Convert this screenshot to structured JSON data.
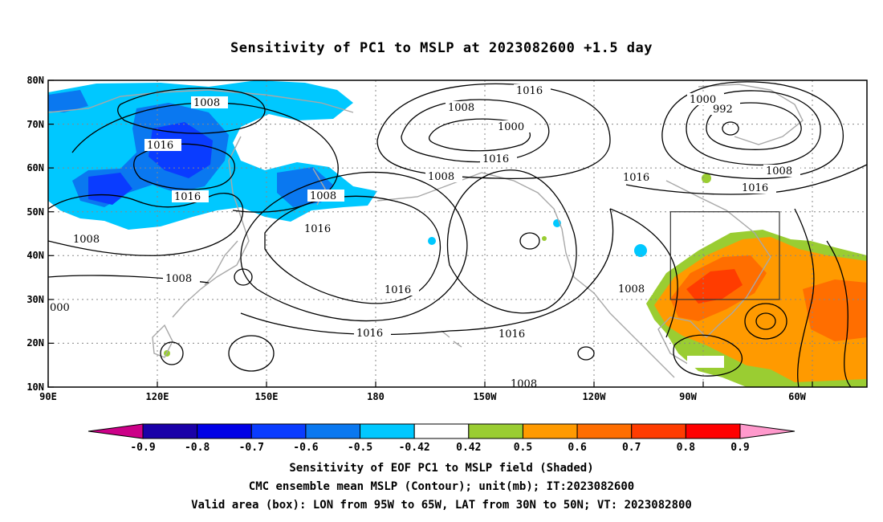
{
  "title": "Sensitivity of PC1 to MSLP at 2023082600 +1.5 day",
  "lat_labels": [
    "80N",
    "70N",
    "60N",
    "50N",
    "40N",
    "30N",
    "20N",
    "10N"
  ],
  "lon_labels": [
    "90E",
    "120E",
    "150E",
    "180",
    "150W",
    "120W",
    "90W",
    "60W"
  ],
  "contour_labels": [
    "1008",
    "1016",
    "1016",
    "1008",
    "1008",
    "1008",
    "000",
    "1008",
    "1000",
    "1016",
    "1008",
    "1016",
    "1016",
    "1016",
    "1016",
    "1016",
    "1008",
    "1000",
    "992",
    "1008",
    "1016",
    "1016",
    "1008"
  ],
  "colorbar": {
    "labels": [
      "-0.9",
      "-0.8",
      "-0.7",
      "-0.6",
      "-0.5",
      "-0.42",
      "0.42",
      "0.5",
      "0.6",
      "0.7",
      "0.8",
      "0.9"
    ],
    "colors": [
      "#1a00a8",
      "#0000e6",
      "#0a3cff",
      "#0a78f0",
      "#00c8ff",
      "#ffffff",
      "#9acd32",
      "#ff9a00",
      "#ff6e00",
      "#ff3c00",
      "#ff0000"
    ],
    "low_arrow_color": "#cc0088",
    "high_arrow_color": "#ff99cc"
  },
  "captions": [
    "Sensitivity of EOF PC1 to MSLP field (Shaded)",
    "CMC ensemble mean MSLP (Contour); unit(mb); IT:2023082600",
    "Valid area (box): LON from 95W to 65W, LAT from 30N to 50N; VT: 2023082800"
  ]
}
